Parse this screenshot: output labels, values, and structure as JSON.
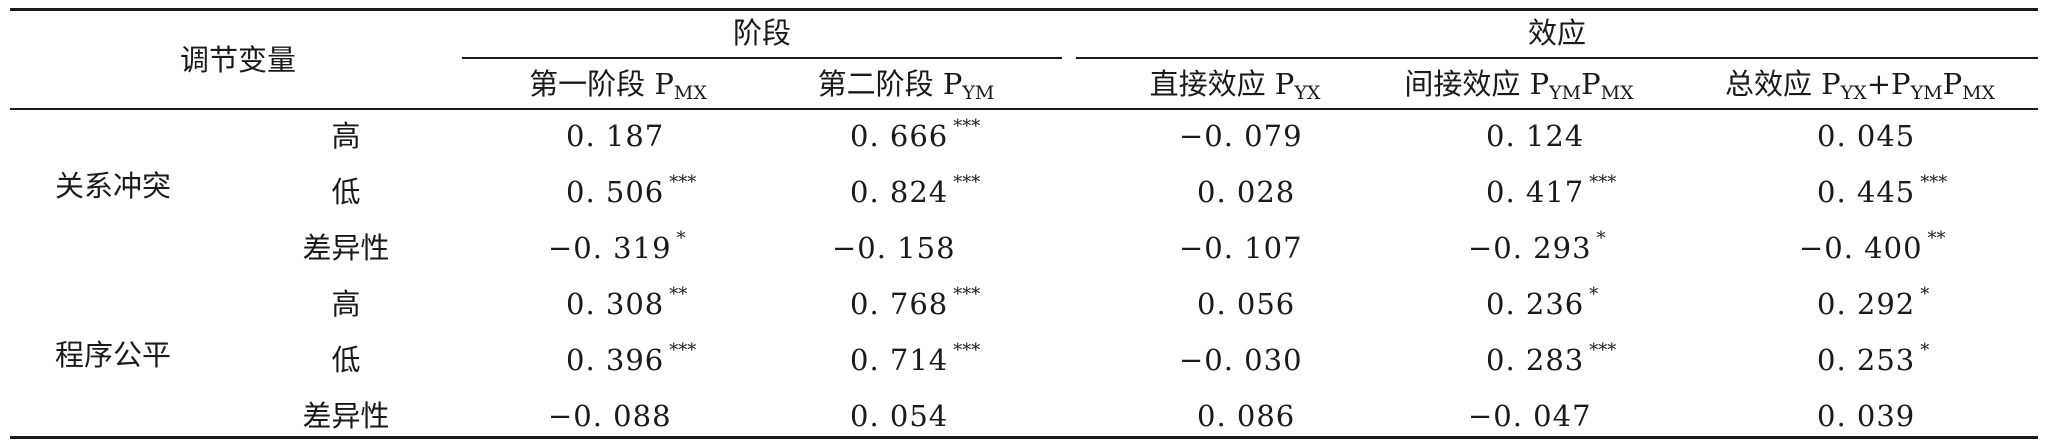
{
  "header": {
    "moderator": "调节变量",
    "stage_group": "阶段",
    "effect_group": "效应",
    "columns": [
      {
        "base": "第一阶段 P",
        "sub1": "MX",
        "mid": "",
        "sub2": ""
      },
      {
        "base": "第二阶段 P",
        "sub1": "YM",
        "mid": "",
        "sub2": ""
      },
      {
        "base": "直接效应 P",
        "sub1": "YX",
        "mid": "",
        "sub2": ""
      },
      {
        "base": "间接效应 P",
        "sub1": "YM",
        "mid": "P",
        "sub2": "MX"
      },
      {
        "base": "总效应 P",
        "sub1": "YX",
        "mid": "+P",
        "sub2": "YM",
        "mid2": "P",
        "sub3": "MX"
      }
    ]
  },
  "groups": [
    {
      "name": "关系冲突",
      "rows": [
        {
          "level": "高",
          "cells": [
            {
              "v": "0. 187",
              "s": ""
            },
            {
              "v": "0. 666",
              "s": "***"
            },
            {
              "v": "−0. 079",
              "s": ""
            },
            {
              "v": "0. 124",
              "s": ""
            },
            {
              "v": "0. 045",
              "s": ""
            }
          ]
        },
        {
          "level": "低",
          "cells": [
            {
              "v": "0. 506",
              "s": "***"
            },
            {
              "v": "0. 824",
              "s": "***"
            },
            {
              "v": "0. 028",
              "s": ""
            },
            {
              "v": "0. 417",
              "s": "***"
            },
            {
              "v": "0. 445",
              "s": "***"
            }
          ]
        },
        {
          "level": "差异性",
          "cells": [
            {
              "v": "−0. 319",
              "s": "*"
            },
            {
              "v": "−0. 158",
              "s": ""
            },
            {
              "v": "−0. 107",
              "s": ""
            },
            {
              "v": "−0. 293",
              "s": "*"
            },
            {
              "v": "−0. 400",
              "s": "**"
            }
          ]
        }
      ]
    },
    {
      "name": "程序公平",
      "rows": [
        {
          "level": "高",
          "cells": [
            {
              "v": "0. 308",
              "s": "**"
            },
            {
              "v": "0. 768",
              "s": "***"
            },
            {
              "v": "0. 056",
              "s": ""
            },
            {
              "v": "0. 236",
              "s": "*"
            },
            {
              "v": "0. 292",
              "s": "*"
            }
          ]
        },
        {
          "level": "低",
          "cells": [
            {
              "v": "0. 396",
              "s": "***"
            },
            {
              "v": "0. 714",
              "s": "***"
            },
            {
              "v": "−0. 030",
              "s": ""
            },
            {
              "v": "0. 283",
              "s": "***"
            },
            {
              "v": "0. 253",
              "s": "*"
            }
          ]
        },
        {
          "level": "差异性",
          "cells": [
            {
              "v": "−0. 088",
              "s": ""
            },
            {
              "v": "0. 054",
              "s": ""
            },
            {
              "v": "0. 086",
              "s": ""
            },
            {
              "v": "−0. 047",
              "s": ""
            },
            {
              "v": "0. 039",
              "s": ""
            }
          ]
        }
      ]
    }
  ]
}
